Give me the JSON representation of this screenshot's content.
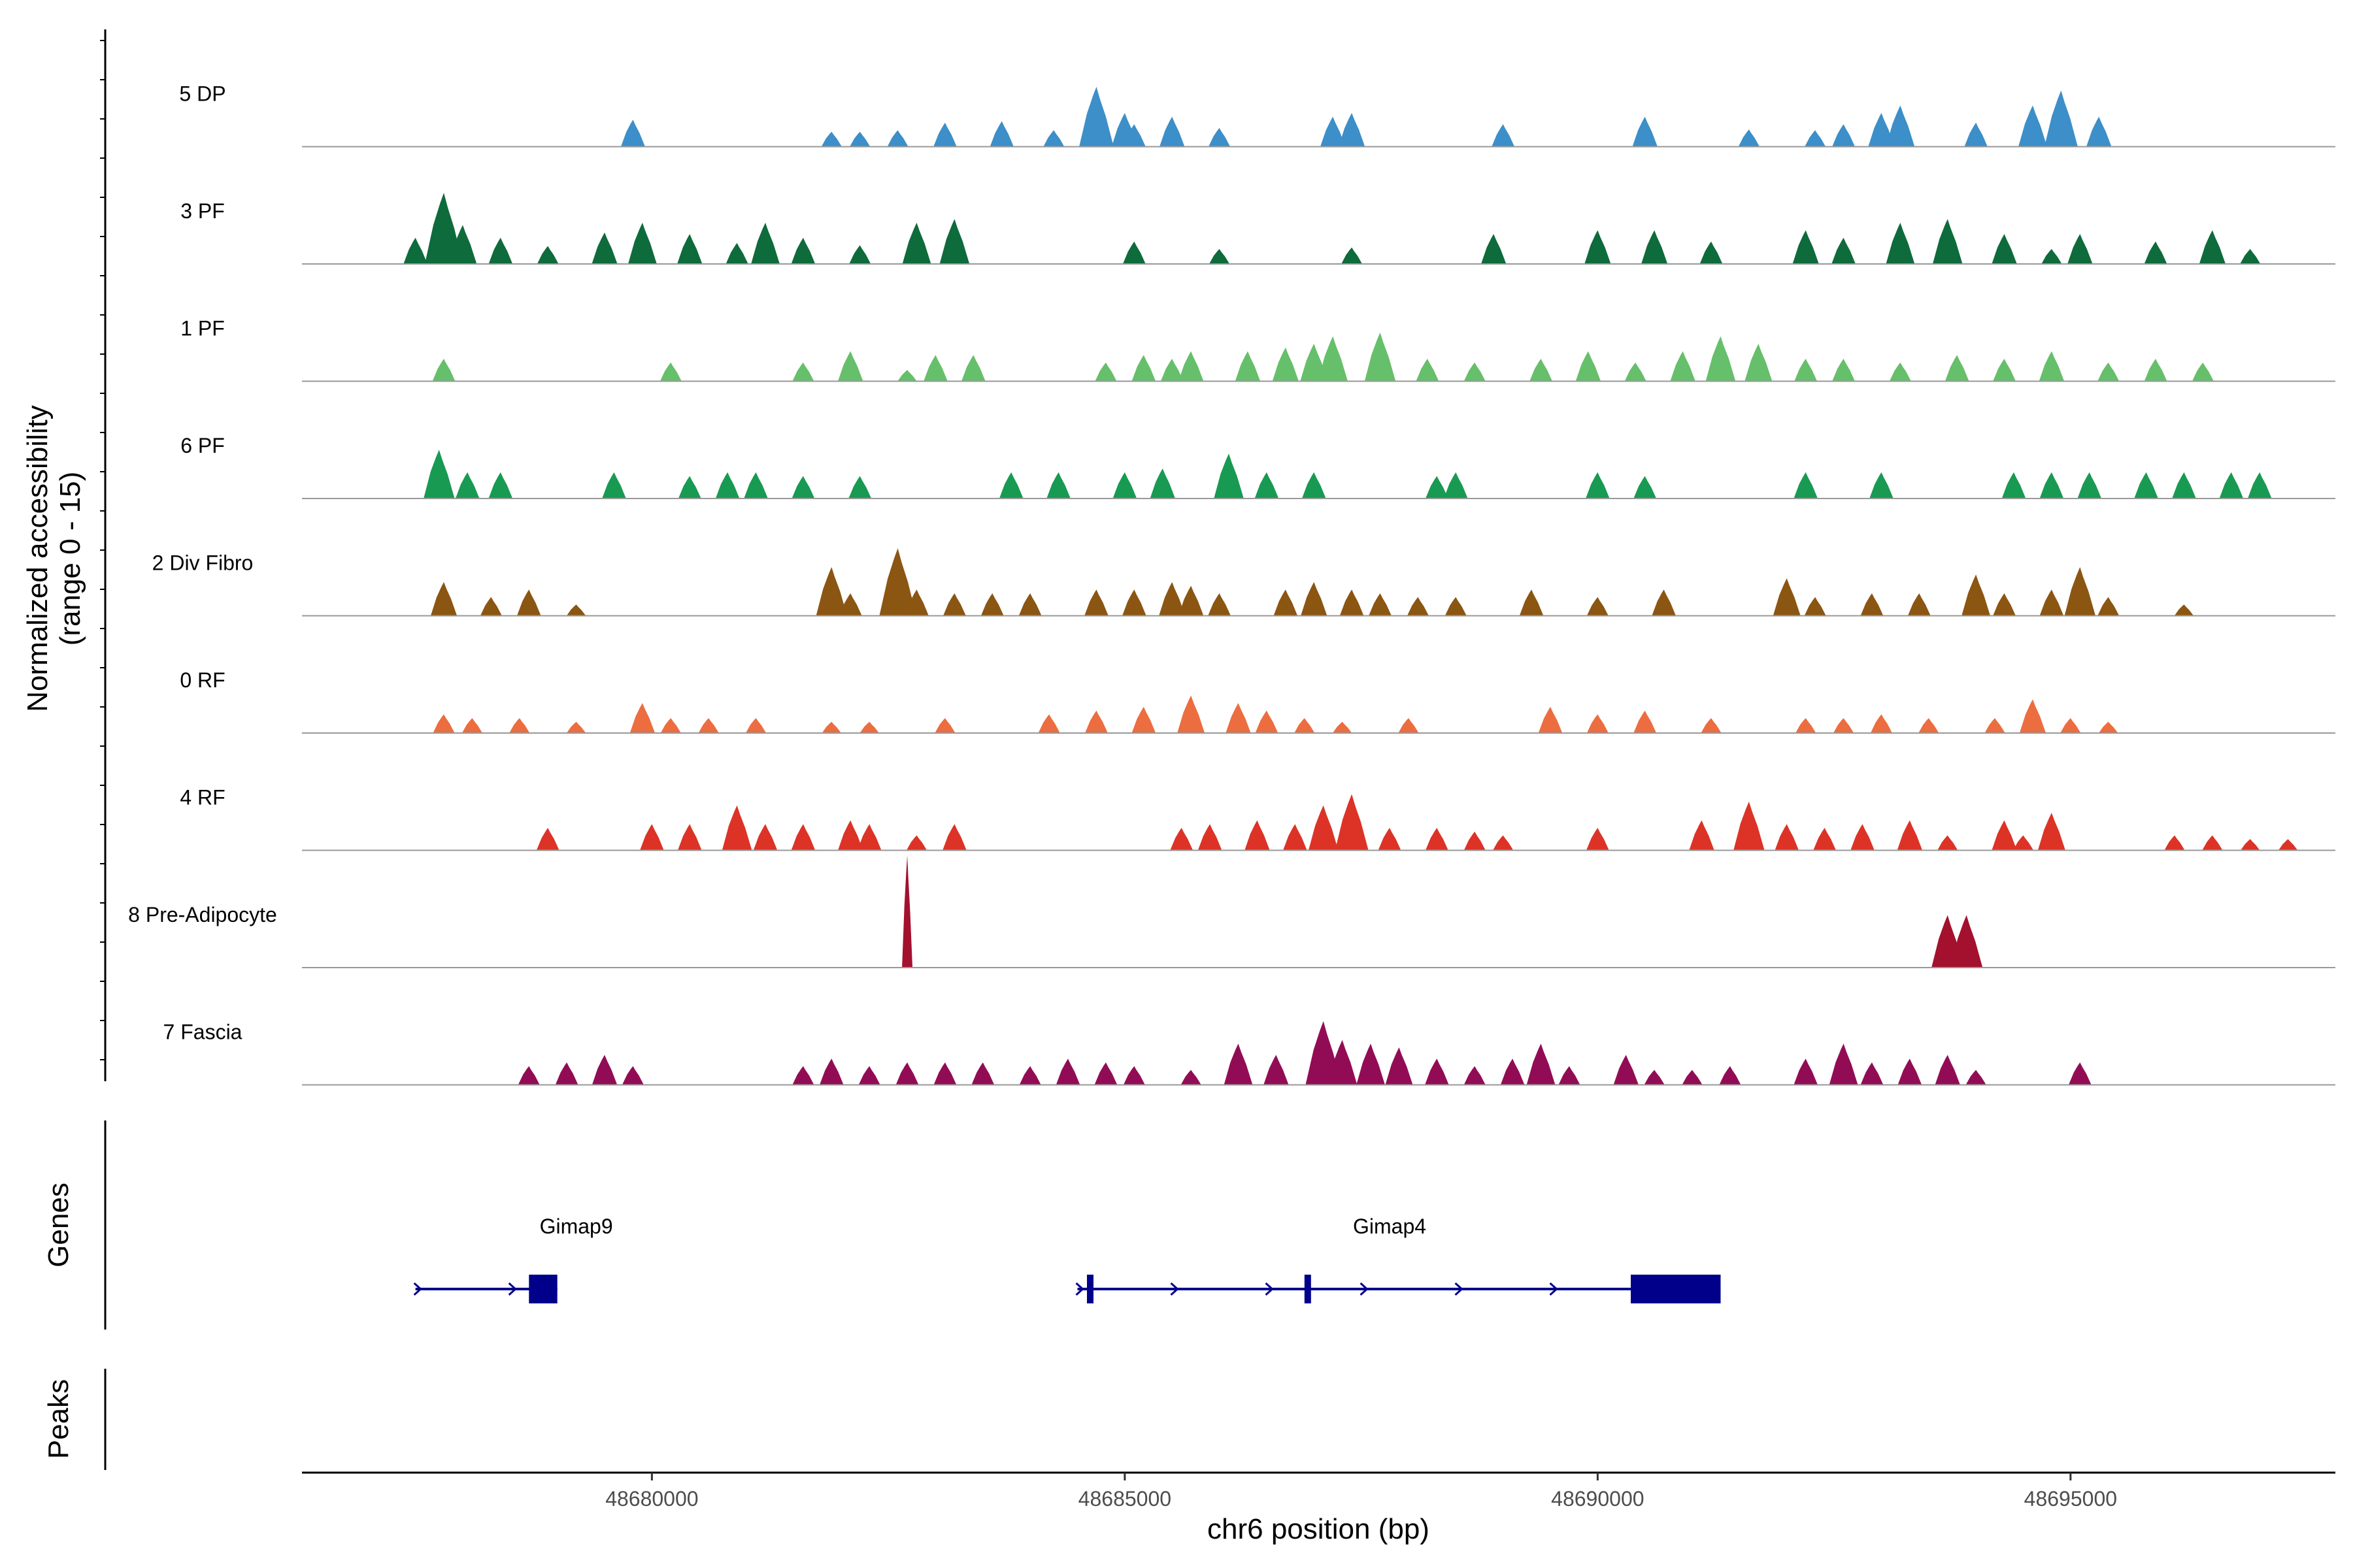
{
  "chart_data": {
    "type": "area",
    "title": "",
    "ylabel_line1": "Normalized accessibility",
    "ylabel_line2": "(range 0 - 15)",
    "xlabel": "chr6 position (bp)",
    "y_range": [
      0,
      15
    ],
    "x_range": [
      48676300,
      48697800
    ],
    "x_ticks": [
      48680000,
      48685000,
      48690000,
      48695000
    ],
    "x_tick_labels": [
      "48680000",
      "48685000",
      "48690000",
      "48695000"
    ],
    "baseline_color": "#999999",
    "tracks": [
      {
        "name": "5 DP",
        "color": "#3c8fc8",
        "peaks": [
          [
            48679800,
            3.6
          ],
          [
            48681900,
            2.0
          ],
          [
            48682200,
            2.0
          ],
          [
            48682600,
            2.2
          ],
          [
            48683100,
            3.2
          ],
          [
            48683700,
            3.4
          ],
          [
            48684250,
            2.2
          ],
          [
            48684700,
            8.0
          ],
          [
            48685000,
            4.5
          ],
          [
            48685100,
            3.0
          ],
          [
            48685500,
            4.0
          ],
          [
            48686000,
            2.5
          ],
          [
            48687200,
            4.0
          ],
          [
            48687400,
            4.5
          ],
          [
            48689000,
            3.0
          ],
          [
            48690500,
            4.0
          ],
          [
            48691600,
            2.3
          ],
          [
            48692300,
            2.2
          ],
          [
            48692600,
            3.0
          ],
          [
            48693000,
            4.5
          ],
          [
            48693200,
            5.5
          ],
          [
            48694000,
            3.2
          ],
          [
            48694600,
            5.5
          ],
          [
            48694900,
            7.5
          ],
          [
            48695300,
            4.0
          ]
        ]
      },
      {
        "name": "3 PF",
        "color": "#0e6b3b",
        "peaks": [
          [
            48677500,
            3.5
          ],
          [
            48677800,
            9.5
          ],
          [
            48678000,
            5.2
          ],
          [
            48678400,
            3.5
          ],
          [
            48678900,
            2.4
          ],
          [
            48679500,
            4.2
          ],
          [
            48679900,
            5.5
          ],
          [
            48680400,
            4.0
          ],
          [
            48680900,
            2.8
          ],
          [
            48681200,
            5.5
          ],
          [
            48681600,
            3.5
          ],
          [
            48682200,
            2.5
          ],
          [
            48682800,
            5.5
          ],
          [
            48683200,
            6.0
          ],
          [
            48685100,
            3.0
          ],
          [
            48686000,
            2.0
          ],
          [
            48687400,
            2.2
          ],
          [
            48688900,
            4.0
          ],
          [
            48690000,
            4.5
          ],
          [
            48690600,
            4.5
          ],
          [
            48691200,
            3.0
          ],
          [
            48692200,
            4.5
          ],
          [
            48692600,
            3.5
          ],
          [
            48693200,
            5.5
          ],
          [
            48693700,
            6.0
          ],
          [
            48694300,
            4.0
          ],
          [
            48694800,
            2.0
          ],
          [
            48695100,
            4.0
          ],
          [
            48695900,
            3.0
          ],
          [
            48696500,
            4.5
          ],
          [
            48696900,
            2.0
          ]
        ]
      },
      {
        "name": "1 PF",
        "color": "#66bf6a",
        "peaks": [
          [
            48677800,
            3.0
          ],
          [
            48680200,
            2.5
          ],
          [
            48681600,
            2.5
          ],
          [
            48682100,
            4.0
          ],
          [
            48682700,
            1.5
          ],
          [
            48683000,
            3.5
          ],
          [
            48683400,
            3.5
          ],
          [
            48684800,
            2.5
          ],
          [
            48685200,
            3.5
          ],
          [
            48685500,
            3.0
          ],
          [
            48685700,
            4.0
          ],
          [
            48686300,
            4.0
          ],
          [
            48686700,
            4.5
          ],
          [
            48687000,
            5.0
          ],
          [
            48687200,
            6.0
          ],
          [
            48687700,
            6.5
          ],
          [
            48688200,
            3.0
          ],
          [
            48688700,
            2.5
          ],
          [
            48689400,
            3.0
          ],
          [
            48689900,
            4.0
          ],
          [
            48690400,
            2.5
          ],
          [
            48690900,
            4.0
          ],
          [
            48691300,
            6.0
          ],
          [
            48691700,
            5.0
          ],
          [
            48692200,
            3.0
          ],
          [
            48692600,
            3.0
          ],
          [
            48693200,
            2.5
          ],
          [
            48693800,
            3.5
          ],
          [
            48694300,
            3.0
          ],
          [
            48694800,
            4.0
          ],
          [
            48695400,
            2.5
          ],
          [
            48695900,
            3.0
          ],
          [
            48696400,
            2.5
          ]
        ]
      },
      {
        "name": "6 PF",
        "color": "#189a52",
        "peaks": [
          [
            48677750,
            6.5
          ],
          [
            48678050,
            3.5
          ],
          [
            48678400,
            3.5
          ],
          [
            48679600,
            3.5
          ],
          [
            48680400,
            3.0
          ],
          [
            48680800,
            3.5
          ],
          [
            48681100,
            3.5
          ],
          [
            48681600,
            3.0
          ],
          [
            48682200,
            3.0
          ],
          [
            48683800,
            3.5
          ],
          [
            48684300,
            3.5
          ],
          [
            48685000,
            3.5
          ],
          [
            48685400,
            4.0
          ],
          [
            48686100,
            6.0
          ],
          [
            48686500,
            3.5
          ],
          [
            48687000,
            3.5
          ],
          [
            48688300,
            3.0
          ],
          [
            48688500,
            3.5
          ],
          [
            48690000,
            3.5
          ],
          [
            48690500,
            3.0
          ],
          [
            48692200,
            3.5
          ],
          [
            48693000,
            3.5
          ],
          [
            48694400,
            3.5
          ],
          [
            48694800,
            3.5
          ],
          [
            48695200,
            3.5
          ],
          [
            48695800,
            3.5
          ],
          [
            48696200,
            3.5
          ],
          [
            48696700,
            3.5
          ],
          [
            48697000,
            3.5
          ]
        ]
      },
      {
        "name": "2 Div Fibro",
        "color": "#8b5512",
        "peaks": [
          [
            48677800,
            4.5
          ],
          [
            48678300,
            2.5
          ],
          [
            48678700,
            3.5
          ],
          [
            48679200,
            1.5
          ],
          [
            48681900,
            6.5
          ],
          [
            48682100,
            3.0
          ],
          [
            48682600,
            9.0
          ],
          [
            48682800,
            3.5
          ],
          [
            48683200,
            3.0
          ],
          [
            48683600,
            3.0
          ],
          [
            48684000,
            3.0
          ],
          [
            48684700,
            3.5
          ],
          [
            48685100,
            3.5
          ],
          [
            48685500,
            4.5
          ],
          [
            48685700,
            4.0
          ],
          [
            48686000,
            3.0
          ],
          [
            48686700,
            3.5
          ],
          [
            48687000,
            4.5
          ],
          [
            48687400,
            3.5
          ],
          [
            48687700,
            3.0
          ],
          [
            48688100,
            2.5
          ],
          [
            48688500,
            2.5
          ],
          [
            48689300,
            3.5
          ],
          [
            48690000,
            2.5
          ],
          [
            48690700,
            3.5
          ],
          [
            48692000,
            5.0
          ],
          [
            48692300,
            2.5
          ],
          [
            48692900,
            3.0
          ],
          [
            48693400,
            3.0
          ],
          [
            48694000,
            5.5
          ],
          [
            48694300,
            3.0
          ],
          [
            48694800,
            3.5
          ],
          [
            48695100,
            6.5
          ],
          [
            48695400,
            2.5
          ],
          [
            48696200,
            1.5
          ]
        ]
      },
      {
        "name": "0 RF",
        "color": "#ec6d3f",
        "peaks": [
          [
            48677800,
            2.5
          ],
          [
            48678100,
            2.0
          ],
          [
            48678600,
            2.0
          ],
          [
            48679200,
            1.5
          ],
          [
            48679900,
            4.0
          ],
          [
            48680200,
            2.0
          ],
          [
            48680600,
            2.0
          ],
          [
            48681100,
            2.0
          ],
          [
            48681900,
            1.5
          ],
          [
            48682300,
            1.5
          ],
          [
            48683100,
            2.0
          ],
          [
            48684200,
            2.5
          ],
          [
            48684700,
            3.0
          ],
          [
            48685200,
            3.5
          ],
          [
            48685700,
            5.0
          ],
          [
            48686200,
            4.0
          ],
          [
            48686500,
            3.0
          ],
          [
            48686900,
            2.0
          ],
          [
            48687300,
            1.5
          ],
          [
            48688000,
            2.0
          ],
          [
            48689500,
            3.5
          ],
          [
            48690000,
            2.5
          ],
          [
            48690500,
            3.0
          ],
          [
            48691200,
            2.0
          ],
          [
            48692200,
            2.0
          ],
          [
            48692600,
            2.0
          ],
          [
            48693000,
            2.5
          ],
          [
            48693500,
            2.0
          ],
          [
            48694200,
            2.0
          ],
          [
            48694600,
            4.5
          ],
          [
            48695000,
            2.0
          ],
          [
            48695400,
            1.5
          ]
        ]
      },
      {
        "name": "4 RF",
        "color": "#dc3326",
        "peaks": [
          [
            48678900,
            3.0
          ],
          [
            48680000,
            3.5
          ],
          [
            48680400,
            3.5
          ],
          [
            48680900,
            6.0
          ],
          [
            48681200,
            3.5
          ],
          [
            48681600,
            3.5
          ],
          [
            48682100,
            4.0
          ],
          [
            48682300,
            3.5
          ],
          [
            48682800,
            2.0
          ],
          [
            48683200,
            3.5
          ],
          [
            48685600,
            3.0
          ],
          [
            48685900,
            3.5
          ],
          [
            48686400,
            4.0
          ],
          [
            48686800,
            3.5
          ],
          [
            48687100,
            6.0
          ],
          [
            48687400,
            7.5
          ],
          [
            48687800,
            3.0
          ],
          [
            48688300,
            3.0
          ],
          [
            48688700,
            2.5
          ],
          [
            48689000,
            2.0
          ],
          [
            48690000,
            3.0
          ],
          [
            48691100,
            4.0
          ],
          [
            48691600,
            6.5
          ],
          [
            48692000,
            3.5
          ],
          [
            48692400,
            3.0
          ],
          [
            48692800,
            3.5
          ],
          [
            48693300,
            4.0
          ],
          [
            48693700,
            2.0
          ],
          [
            48694300,
            4.0
          ],
          [
            48694500,
            2.0
          ],
          [
            48694800,
            5.0
          ],
          [
            48696100,
            2.0
          ],
          [
            48696500,
            2.0
          ],
          [
            48696900,
            1.5
          ],
          [
            48697300,
            1.5
          ]
        ]
      },
      {
        "name": "8 Pre-Adipocyte",
        "color": "#a3112e",
        "peaks": [
          [
            48682700,
            15.0
          ],
          [
            48693700,
            7.0
          ],
          [
            48693900,
            7.0
          ]
        ]
      },
      {
        "name": "7 Fascia",
        "color": "#920c55",
        "peaks": [
          [
            48678700,
            2.5
          ],
          [
            48679100,
            3.0
          ],
          [
            48679500,
            4.0
          ],
          [
            48679800,
            2.5
          ],
          [
            48681600,
            2.5
          ],
          [
            48681900,
            3.5
          ],
          [
            48682300,
            2.5
          ],
          [
            48682700,
            3.0
          ],
          [
            48683100,
            3.0
          ],
          [
            48683500,
            3.0
          ],
          [
            48684000,
            2.5
          ],
          [
            48684400,
            3.5
          ],
          [
            48684800,
            3.0
          ],
          [
            48685100,
            2.5
          ],
          [
            48685700,
            2.0
          ],
          [
            48686200,
            5.5
          ],
          [
            48686600,
            4.0
          ],
          [
            48687100,
            8.5
          ],
          [
            48687300,
            6.0
          ],
          [
            48687600,
            5.5
          ],
          [
            48687900,
            5.0
          ],
          [
            48688300,
            3.5
          ],
          [
            48688700,
            2.5
          ],
          [
            48689100,
            3.5
          ],
          [
            48689400,
            5.5
          ],
          [
            48689700,
            2.5
          ],
          [
            48690300,
            4.0
          ],
          [
            48690600,
            2.0
          ],
          [
            48691000,
            2.0
          ],
          [
            48691400,
            2.5
          ],
          [
            48692200,
            3.5
          ],
          [
            48692600,
            5.5
          ],
          [
            48692900,
            3.0
          ],
          [
            48693300,
            3.5
          ],
          [
            48693700,
            4.0
          ],
          [
            48694000,
            2.0
          ],
          [
            48695100,
            3.0
          ]
        ]
      }
    ],
    "genes_panel_title": "Genes",
    "peaks_panel_title": "Peaks",
    "gene_color": "#00008b",
    "genes": [
      {
        "name": "Gimap9",
        "start": 48677500,
        "end": 48679000,
        "exons": [
          [
            48678700,
            48679000
          ]
        ],
        "label_pos": 48679200
      },
      {
        "name": "Gimap4",
        "start": 48684500,
        "end": 48691300,
        "exons": [
          [
            48684600,
            48684650
          ],
          [
            48686900,
            48686950
          ],
          [
            48690350,
            48691300
          ]
        ],
        "label_pos": 48687800
      }
    ]
  }
}
